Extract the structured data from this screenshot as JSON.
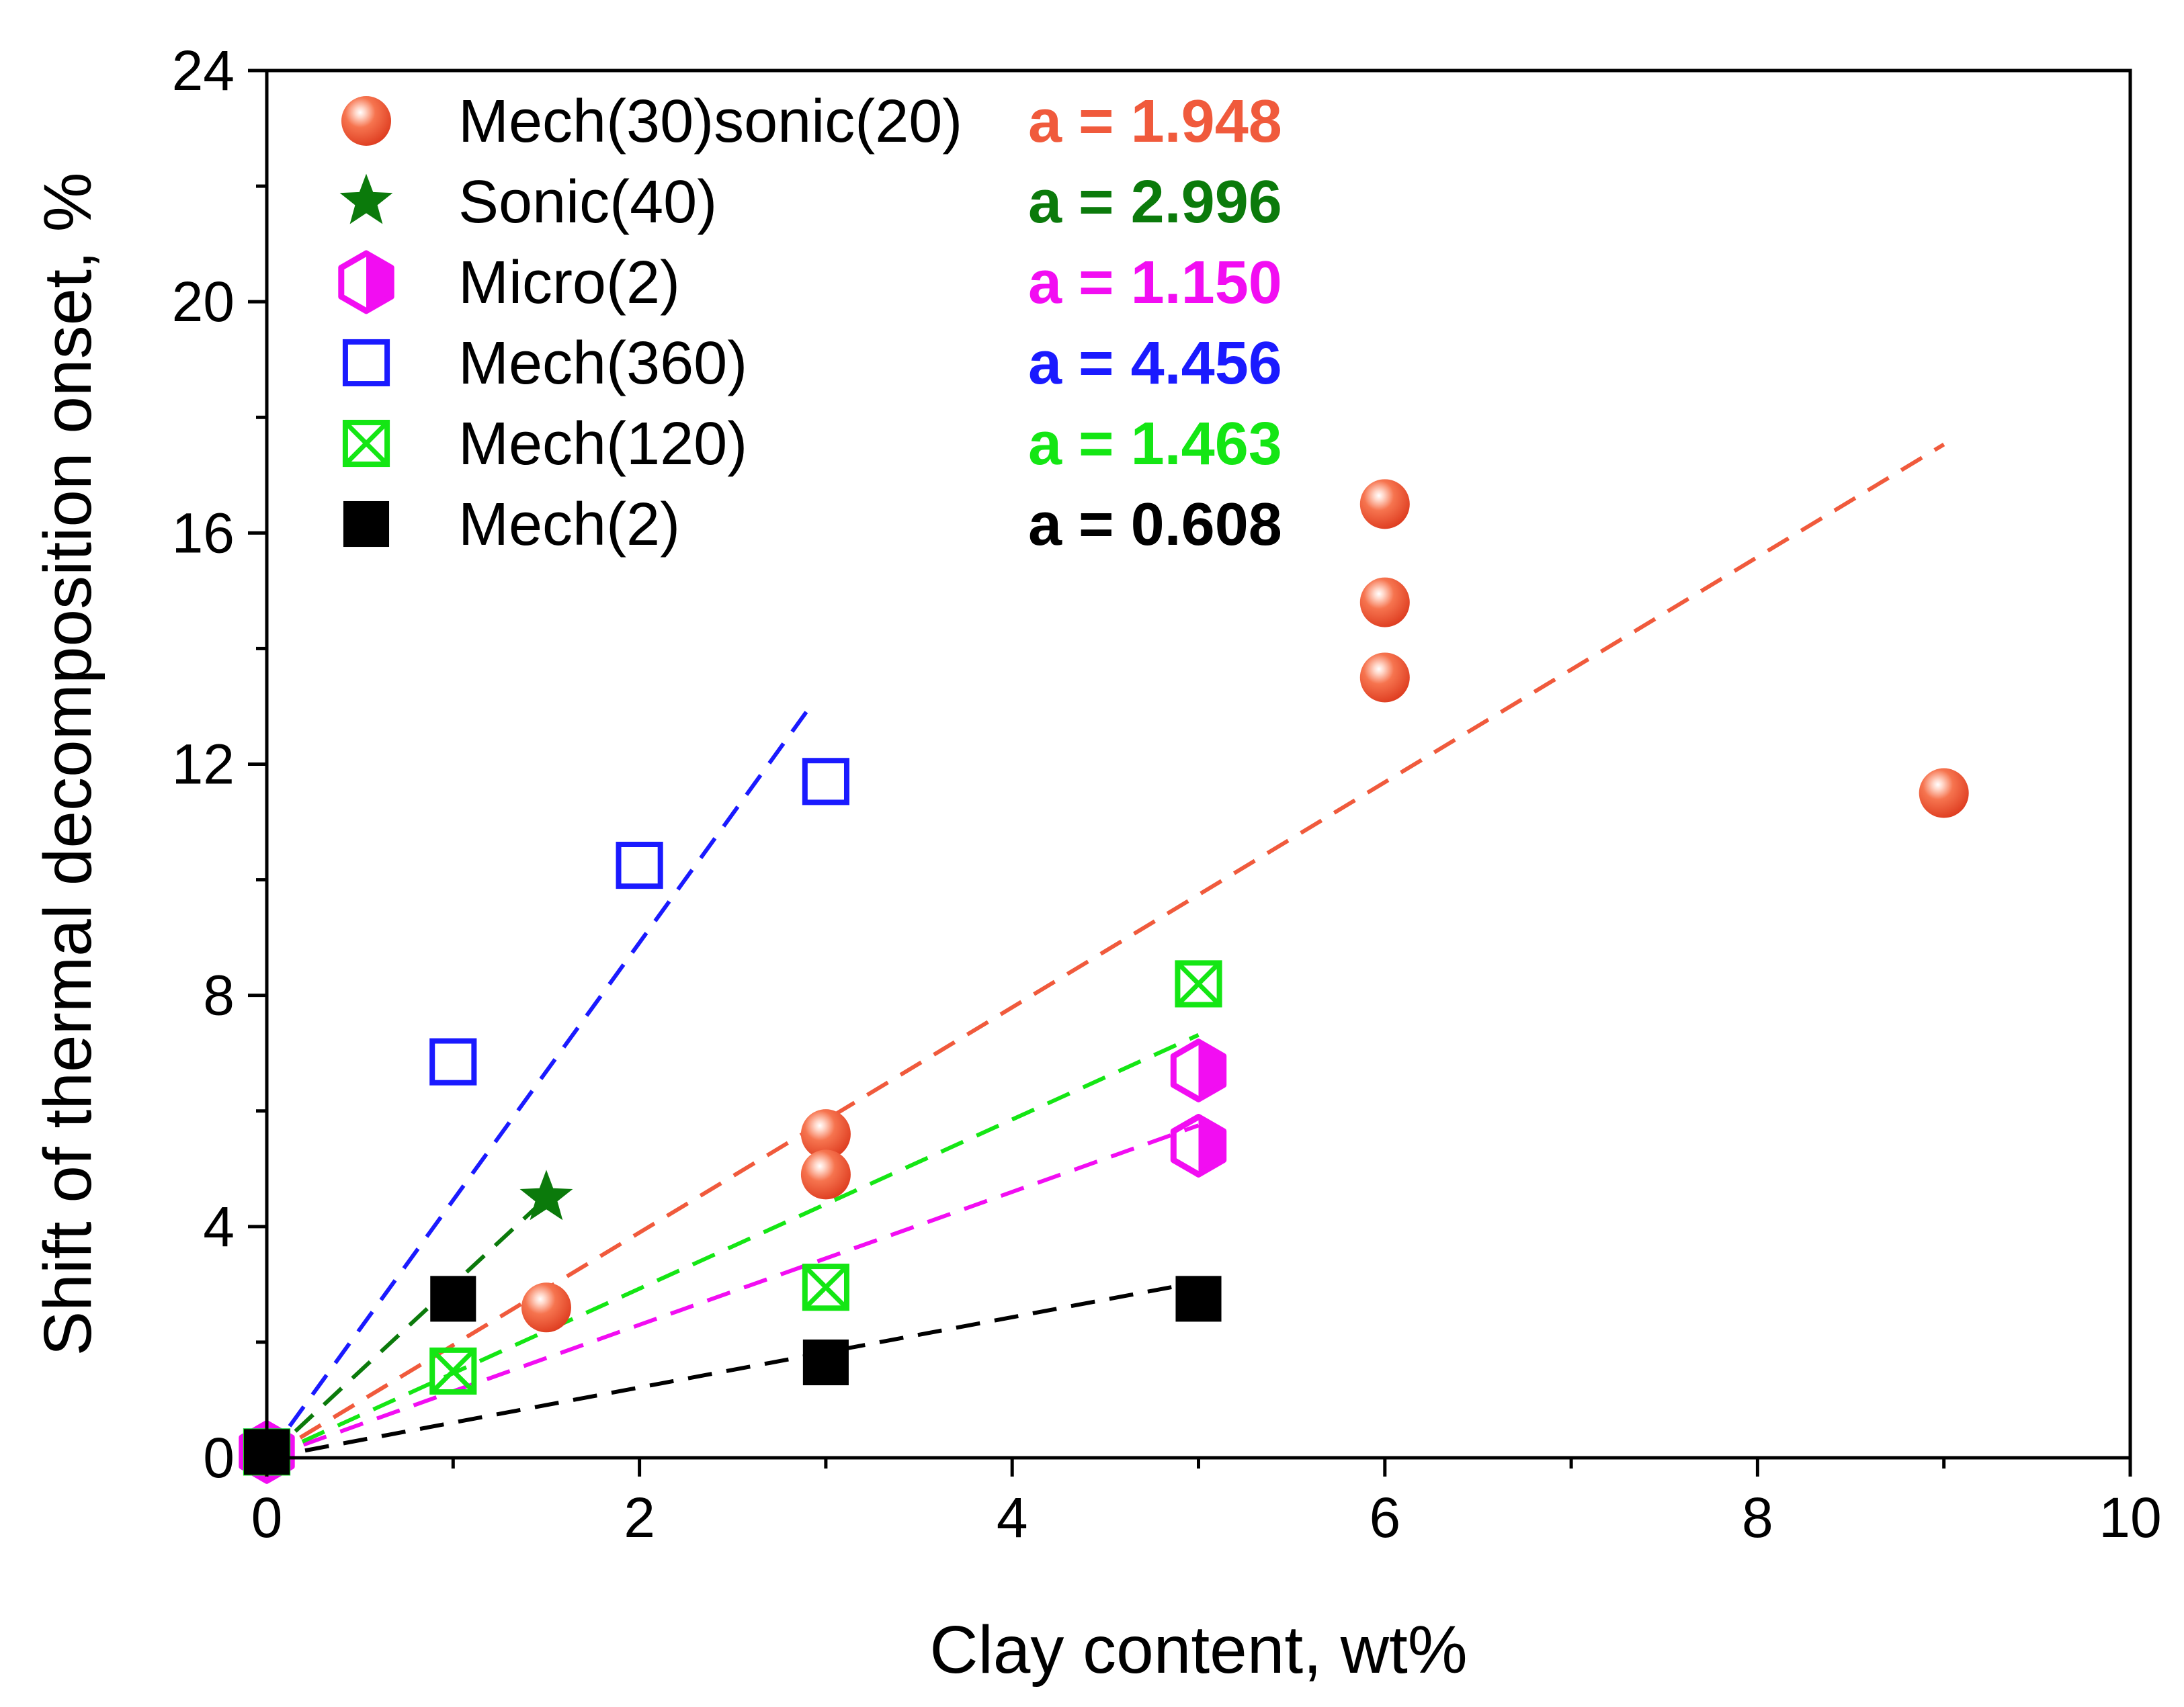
{
  "chart_data": {
    "type": "scatter",
    "title": "",
    "xlabel": "Clay content, wt%",
    "ylabel": "Shift of thermal decomposition onset, %",
    "xlim": [
      0,
      10
    ],
    "ylim": [
      0,
      24
    ],
    "x_ticks": [
      0,
      2,
      4,
      6,
      8,
      10
    ],
    "y_ticks": [
      0,
      4,
      8,
      12,
      16,
      20,
      24
    ],
    "x_tick_labels": [
      "0",
      "2",
      "4",
      "6",
      "8",
      "10"
    ],
    "y_tick_labels": [
      "0",
      "4",
      "8",
      "12",
      "16",
      "20",
      "24"
    ],
    "grid": false,
    "legend_position": "top-left",
    "fit_model": "y = a * x",
    "series": [
      {
        "name": "Mech(30)sonic(20)",
        "marker": "sphere",
        "color": "#f05a3c",
        "slope_label": "a = 1.948",
        "slope": 1.948,
        "fit_x_max": 9,
        "points": [
          [
            0,
            0.1
          ],
          [
            1.5,
            2.6
          ],
          [
            3,
            5.6
          ],
          [
            3,
            4.9
          ],
          [
            6,
            16.5
          ],
          [
            6,
            14.8
          ],
          [
            6,
            13.5
          ],
          [
            9,
            11.5
          ]
        ]
      },
      {
        "name": "Sonic(40)",
        "marker": "star",
        "color": "#0b7a0b",
        "slope_label": "a = 2.996",
        "slope": 2.996,
        "fit_x_max": 1.5,
        "points": [
          [
            0,
            0.1
          ],
          [
            1.5,
            4.5
          ]
        ]
      },
      {
        "name": "Micro(2)",
        "marker": "hexagon-half",
        "color": "#f20df2",
        "slope_label": "a = 1.150",
        "slope": 1.15,
        "fit_x_max": 5,
        "points": [
          [
            0,
            0.1
          ],
          [
            5,
            6.7
          ],
          [
            5,
            5.4
          ]
        ]
      },
      {
        "name": "Mech(360)",
        "marker": "square-open",
        "color": "#1a1aff",
        "slope_label": "a = 4.456",
        "slope": 4.456,
        "fit_x_max": 2.93,
        "points": [
          [
            0,
            0.1
          ],
          [
            1,
            6.85
          ],
          [
            2,
            10.25
          ],
          [
            3,
            11.7
          ]
        ]
      },
      {
        "name": "Mech(120)",
        "marker": "square-x",
        "color": "#14e614",
        "slope_label": "a = 1.463",
        "slope": 1.463,
        "fit_x_max": 5,
        "points": [
          [
            0,
            0.1
          ],
          [
            1,
            1.5
          ],
          [
            3,
            2.95
          ],
          [
            5,
            8.2
          ]
        ]
      },
      {
        "name": "Mech(2)",
        "marker": "square-filled",
        "color": "#000000",
        "slope_label": "a = 0.608",
        "slope": 0.608,
        "fit_x_max": 5,
        "points": [
          [
            0,
            0.1
          ],
          [
            1,
            2.75
          ],
          [
            3,
            1.65
          ],
          [
            5,
            2.75
          ]
        ]
      }
    ]
  }
}
